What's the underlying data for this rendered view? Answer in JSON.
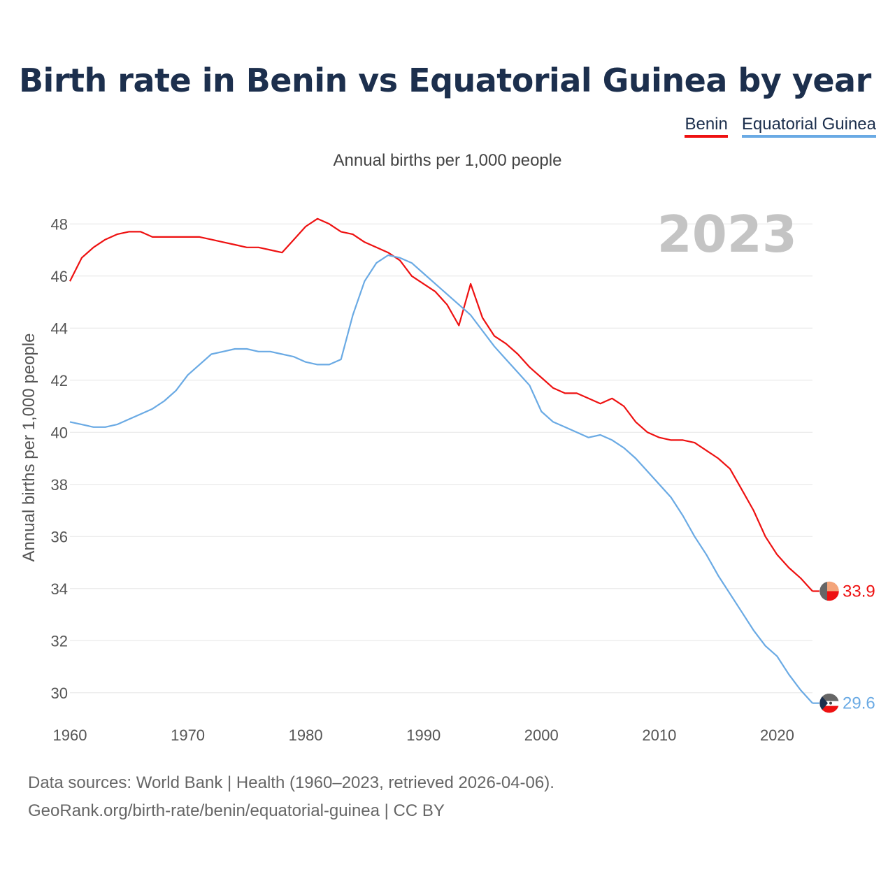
{
  "title": "Birth rate in Benin vs Equatorial Guinea by year",
  "subtitle": "Annual births per 1,000 people",
  "legend": {
    "benin": "Benin",
    "equatorial_guinea": "Equatorial Guinea"
  },
  "source_line1": "Data sources: World Bank | Health (1960–2023, retrieved 2026-04-06).",
  "source_line2": "GeoRank.org/birth-rate/benin/equatorial-guinea | CC BY",
  "colors": {
    "benin": "#ee1111",
    "equatorial_guinea": "#6aaae4",
    "grid": "#e6e6e6"
  },
  "chart_data": {
    "type": "line",
    "title": "Birth rate in Benin vs Equatorial Guinea by year",
    "ylabel": "Annual births per 1,000 people",
    "xlabel": "",
    "current_year": "2023",
    "xlim": [
      1960,
      2023
    ],
    "ylim": [
      29,
      49
    ],
    "x_ticks": [
      1960,
      1970,
      1980,
      1990,
      2000,
      2010,
      2020
    ],
    "y_ticks": [
      30,
      32,
      34,
      36,
      38,
      40,
      42,
      44,
      46,
      48
    ],
    "x": [
      1960,
      1961,
      1962,
      1963,
      1964,
      1965,
      1966,
      1967,
      1968,
      1969,
      1970,
      1971,
      1972,
      1973,
      1974,
      1975,
      1976,
      1977,
      1978,
      1979,
      1980,
      1981,
      1982,
      1983,
      1984,
      1985,
      1986,
      1987,
      1988,
      1989,
      1990,
      1991,
      1992,
      1993,
      1994,
      1995,
      1996,
      1997,
      1998,
      1999,
      2000,
      2001,
      2002,
      2003,
      2004,
      2005,
      2006,
      2007,
      2008,
      2009,
      2010,
      2011,
      2012,
      2013,
      2014,
      2015,
      2016,
      2017,
      2018,
      2019,
      2020,
      2021,
      2022,
      2023
    ],
    "series": [
      {
        "name": "Benin",
        "end_label": "33.9",
        "values": [
          45.8,
          46.7,
          47.1,
          47.4,
          47.6,
          47.7,
          47.7,
          47.5,
          47.5,
          47.5,
          47.5,
          47.5,
          47.4,
          47.3,
          47.2,
          47.1,
          47.1,
          47.0,
          46.9,
          47.4,
          47.9,
          48.2,
          48.0,
          47.7,
          47.6,
          47.3,
          47.1,
          46.9,
          46.6,
          46.0,
          45.7,
          45.4,
          44.9,
          44.1,
          45.7,
          44.4,
          43.7,
          43.4,
          43.0,
          42.5,
          42.1,
          41.7,
          41.5,
          41.5,
          41.3,
          41.1,
          41.3,
          41.0,
          40.4,
          40.0,
          39.8,
          39.7,
          39.7,
          39.6,
          39.3,
          39.0,
          38.6,
          37.8,
          37.0,
          36.0,
          35.3,
          34.8,
          34.4,
          33.9
        ]
      },
      {
        "name": "Equatorial Guinea",
        "end_label": "29.6",
        "values": [
          40.4,
          40.3,
          40.2,
          40.2,
          40.3,
          40.5,
          40.7,
          40.9,
          41.2,
          41.6,
          42.2,
          42.6,
          43.0,
          43.1,
          43.2,
          43.2,
          43.1,
          43.1,
          43.0,
          42.9,
          42.7,
          42.6,
          42.6,
          42.8,
          44.5,
          45.8,
          46.5,
          46.8,
          46.7,
          46.5,
          46.1,
          45.7,
          45.3,
          44.9,
          44.5,
          43.9,
          43.3,
          42.8,
          42.3,
          41.8,
          40.8,
          40.4,
          40.2,
          40.0,
          39.8,
          39.9,
          39.7,
          39.4,
          39.0,
          38.5,
          38.0,
          37.5,
          36.8,
          36.0,
          35.3,
          34.5,
          33.8,
          33.1,
          32.4,
          31.8,
          31.4,
          30.7,
          30.1,
          29.6
        ]
      }
    ]
  }
}
